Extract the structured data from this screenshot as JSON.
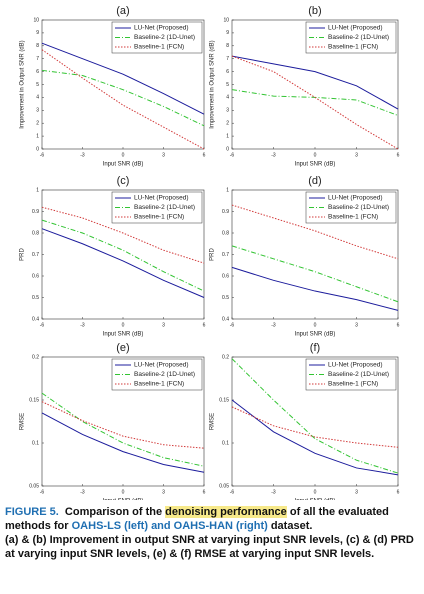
{
  "chart_data": [
    {
      "type": "line",
      "title": "(a)",
      "xlabel": "Input SNR (dB)",
      "ylabel": "Improvement in Output SNR (dB)",
      "x": [
        -6,
        -3,
        0,
        3,
        6
      ],
      "xlim": [
        -6,
        6
      ],
      "xticks": [
        -6,
        -3,
        0,
        3,
        6
      ],
      "ylim": [
        0,
        10
      ],
      "yticks": [
        0,
        1,
        2,
        3,
        4,
        5,
        6,
        7,
        8,
        9,
        10
      ],
      "legend": "upper right",
      "series": [
        {
          "name": "LU-Net (Proposed)",
          "color": "#1c1c9c",
          "style": "solid",
          "values": [
            8.2,
            7.0,
            5.8,
            4.3,
            2.7
          ]
        },
        {
          "name": "Baseline-2 (1D-Unet)",
          "color": "#33c433",
          "style": "dashdot",
          "values": [
            6.1,
            5.7,
            4.6,
            3.3,
            1.8
          ]
        },
        {
          "name": "Baseline-1 (FCN)",
          "color": "#d23a3a",
          "style": "dotted",
          "values": [
            7.7,
            5.5,
            3.4,
            1.7,
            0
          ]
        }
      ]
    },
    {
      "type": "line",
      "title": "(b)",
      "xlabel": "Input SNR (dB)",
      "ylabel": "Improvement in Output SNR (dB)",
      "x": [
        -6,
        -3,
        0,
        3,
        6
      ],
      "xlim": [
        -6,
        6
      ],
      "xticks": [
        -6,
        -3,
        0,
        3,
        6
      ],
      "ylim": [
        0,
        10
      ],
      "yticks": [
        0,
        1,
        2,
        3,
        4,
        5,
        6,
        7,
        8,
        9,
        10
      ],
      "legend": "upper right",
      "series": [
        {
          "name": "LU-Net (Proposed)",
          "color": "#1c1c9c",
          "style": "solid",
          "values": [
            7.2,
            6.6,
            6.0,
            4.9,
            3.1
          ]
        },
        {
          "name": "Baseline-2 (1D-Unet)",
          "color": "#33c433",
          "style": "dashdot",
          "values": [
            4.6,
            4.1,
            4.0,
            3.8,
            2.6
          ]
        },
        {
          "name": "Baseline-1 (FCN)",
          "color": "#d23a3a",
          "style": "dotted",
          "values": [
            7.2,
            6.0,
            4.0,
            1.9,
            0
          ]
        }
      ]
    },
    {
      "type": "line",
      "title": "(c)",
      "xlabel": "Input SNR (dB)",
      "ylabel": "PRD",
      "x": [
        -6,
        -3,
        0,
        3,
        6
      ],
      "xlim": [
        -6,
        6
      ],
      "xticks": [
        -6,
        -3,
        0,
        3,
        6
      ],
      "ylim": [
        0.4,
        1
      ],
      "yticks": [
        0.4,
        0.5,
        0.6,
        0.7,
        0.8,
        0.9,
        1
      ],
      "legend": "upper right",
      "series": [
        {
          "name": "LU-Net (Proposed)",
          "color": "#1c1c9c",
          "style": "solid",
          "values": [
            0.82,
            0.75,
            0.67,
            0.58,
            0.5
          ]
        },
        {
          "name": "Baseline-2 (1D-Unet)",
          "color": "#33c433",
          "style": "dashdot",
          "values": [
            0.86,
            0.8,
            0.72,
            0.62,
            0.53
          ]
        },
        {
          "name": "Baseline-1 (FCN)",
          "color": "#d23a3a",
          "style": "dotted",
          "values": [
            0.92,
            0.87,
            0.8,
            0.72,
            0.66
          ]
        }
      ]
    },
    {
      "type": "line",
      "title": "(d)",
      "xlabel": "Input SNR (dB)",
      "ylabel": "PRD",
      "x": [
        -6,
        -3,
        0,
        3,
        6
      ],
      "xlim": [
        -6,
        6
      ],
      "xticks": [
        -6,
        -3,
        0,
        3,
        6
      ],
      "ylim": [
        0.4,
        1
      ],
      "yticks": [
        0.4,
        0.5,
        0.6,
        0.7,
        0.8,
        0.9,
        1
      ],
      "legend": "upper right",
      "series": [
        {
          "name": "LU-Net (Proposed)",
          "color": "#1c1c9c",
          "style": "solid",
          "values": [
            0.64,
            0.58,
            0.53,
            0.49,
            0.44
          ]
        },
        {
          "name": "Baseline-2 (1D-Unet)",
          "color": "#33c433",
          "style": "dashdot",
          "values": [
            0.74,
            0.68,
            0.62,
            0.55,
            0.48
          ]
        },
        {
          "name": "Baseline-1 (FCN)",
          "color": "#d23a3a",
          "style": "dotted",
          "values": [
            0.93,
            0.87,
            0.81,
            0.74,
            0.68
          ]
        }
      ]
    },
    {
      "type": "line",
      "title": "(e)",
      "xlabel": "Input SNR (dB)",
      "ylabel": "RMSE",
      "x": [
        -6,
        -3,
        0,
        3,
        6
      ],
      "xlim": [
        -6,
        6
      ],
      "xticks": [
        -6,
        -3,
        0,
        3,
        6
      ],
      "ylim": [
        0.05,
        0.2
      ],
      "yticks": [
        0.05,
        0.1,
        0.15,
        0.2
      ],
      "legend": "upper right",
      "series": [
        {
          "name": "LU-Net (Proposed)",
          "color": "#1c1c9c",
          "style": "solid",
          "values": [
            0.135,
            0.11,
            0.09,
            0.075,
            0.066
          ]
        },
        {
          "name": "Baseline-2 (1D-Unet)",
          "color": "#33c433",
          "style": "dashdot",
          "values": [
            0.158,
            0.125,
            0.1,
            0.083,
            0.073
          ]
        },
        {
          "name": "Baseline-1 (FCN)",
          "color": "#d23a3a",
          "style": "dotted",
          "values": [
            0.148,
            0.126,
            0.108,
            0.098,
            0.094
          ]
        }
      ]
    },
    {
      "type": "line",
      "title": "(f)",
      "xlabel": "Input SNR (dB)",
      "ylabel": "RMSE",
      "x": [
        -6,
        -3,
        0,
        3,
        6
      ],
      "xlim": [
        -6,
        6
      ],
      "xticks": [
        -6,
        -3,
        0,
        3,
        6
      ],
      "ylim": [
        0.05,
        0.2
      ],
      "yticks": [
        0.05,
        0.1,
        0.15,
        0.2
      ],
      "legend": "upper right",
      "series": [
        {
          "name": "LU-Net (Proposed)",
          "color": "#1c1c9c",
          "style": "solid",
          "values": [
            0.15,
            0.113,
            0.088,
            0.071,
            0.063
          ]
        },
        {
          "name": "Baseline-2 (1D-Unet)",
          "color": "#33c433",
          "style": "dashdot",
          "values": [
            0.198,
            0.15,
            0.105,
            0.08,
            0.065
          ]
        },
        {
          "name": "Baseline-1 (FCN)",
          "color": "#d23a3a",
          "style": "dotted",
          "values": [
            0.142,
            0.12,
            0.107,
            0.1,
            0.095
          ]
        }
      ]
    }
  ],
  "caption": {
    "label": "FIGURE 5.",
    "parts": [
      "Comparison of the ",
      "denoising performance",
      " of all the evaluated methods for ",
      "OAHS-LS (left) and OAHS-HAN (right)",
      " dataset."
    ],
    "details": "(a) & (b) Improvement in output SNR at varying input SNR levels, (c) & (d) PRD at varying input SNR levels, (e) & (f) RMSE at varying input SNR levels."
  }
}
